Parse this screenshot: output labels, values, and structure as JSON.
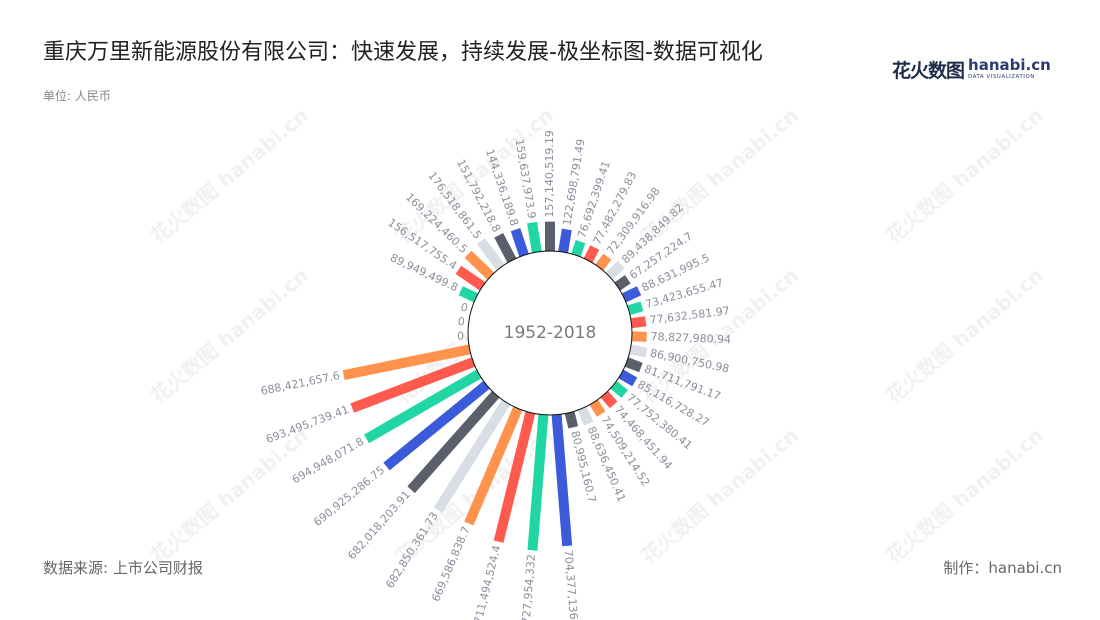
{
  "header": {
    "title": "重庆万里新能源股份有限公司：快速发展，持续发展-极坐标图-数据可视化",
    "unit": "单位: 人民币"
  },
  "logo": {
    "cn": "花火数图",
    "en": "hanabi.cn",
    "sub": "DATA VISUALIZATION"
  },
  "footer": {
    "source": "数据来源: 上市公司财报",
    "credit": "制作：hanabi.cn"
  },
  "watermark": "花火数图 hanabi.cn",
  "colors": {
    "palette": [
      "#5b5e6b",
      "#3b5bdb",
      "#1fd6a4",
      "#ff5a4e",
      "#ff934d",
      "#d9dde6"
    ],
    "center_text": "#7a7a7a",
    "label": "#8a8f9c"
  },
  "chart_data": {
    "type": "polar-bar",
    "center_label": "1952-2018",
    "angle_unit": "category",
    "series": [
      {
        "values": [
          157140519.19,
          122698791.49,
          76692399.41,
          77482279.83,
          72309916.98,
          89438849.82,
          67257224.7,
          88631995.5,
          73423655.47,
          77632581.97,
          78827980.94,
          86900750.98,
          81711791.17,
          85116728.27,
          77752380.41,
          74468451.94,
          74509214.52,
          88636450.41,
          80995160.7,
          704377136,
          727954332,
          711494524.4,
          669586838.7,
          682850361.73,
          682018203.91,
          690925286.75,
          694948071.8,
          693495739.41,
          688421657.6,
          0,
          0,
          0,
          89949499.8,
          156517755.4,
          169224460.5,
          176518861.5,
          151792218.8,
          144336189.8,
          159637973.9
        ],
        "labels": [
          "157,140,519.19",
          "122,698,791.49",
          "76,692,399.41",
          "77,482,279.83",
          "72,309,916.98",
          "89,438,849.82",
          "67,257,224.7",
          "88,631,995.5",
          "73,423,655.47",
          "77,632,581.97",
          "78,827,980.94",
          "86,900,750.98",
          "81,711,791.17",
          "85,116,728.27",
          "77,752,380.41",
          "74,468,451.94",
          "74,509,214.52",
          "88,636,450.41",
          "80,995,160.7",
          "704,377,136",
          "727,954,332",
          "711,494,524.4",
          "669,586,838.7",
          "682,850,361.73",
          "682,018,203.91",
          "690,925,286.75",
          "694,948,071.8",
          "693,495,739.41",
          "688,421,657.6",
          "0",
          "0",
          "0",
          "89,949,499.8",
          "156,517,755.4",
          "169,224,460.5",
          "176,518,861.5",
          "151,792,218.8",
          "144,336,189.8",
          "159,637,973.9"
        ]
      }
    ]
  }
}
